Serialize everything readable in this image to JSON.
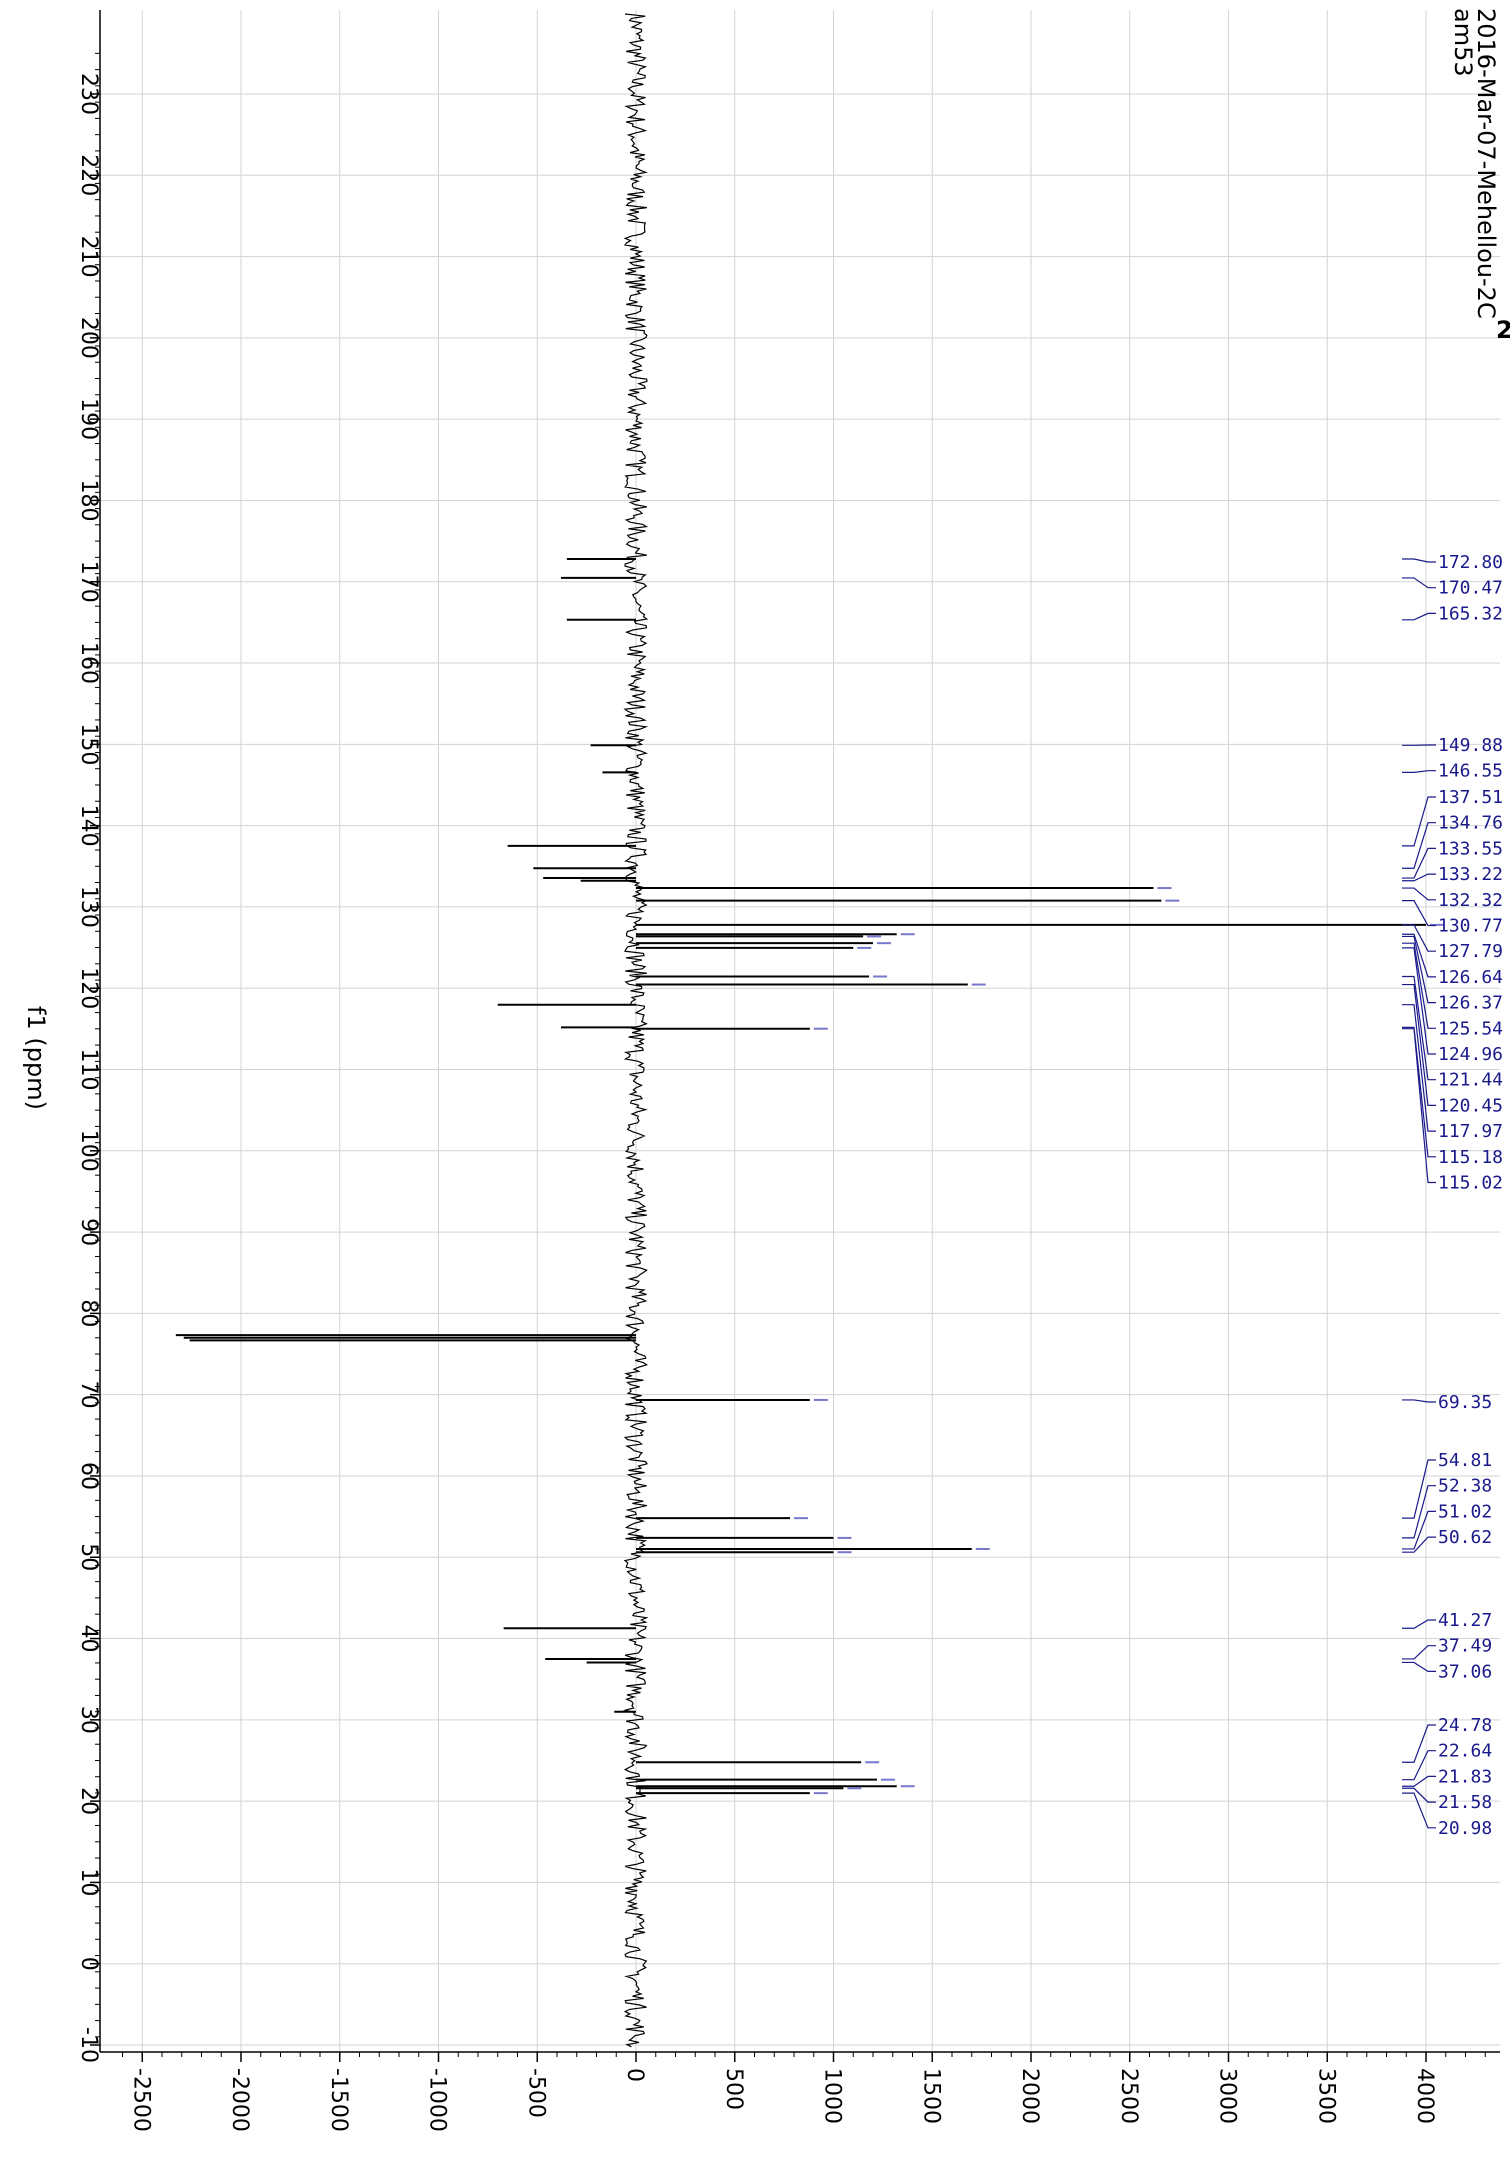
{
  "header": {
    "line1": "2016-Mar-07-Mehellou-2C",
    "line2": "am53",
    "edge_mark": "2"
  },
  "colors": {
    "spectrum": "#000000",
    "peak_label": "#1a1a8c",
    "peak_cap": "#7777cc",
    "grid": "#d3d3d3"
  },
  "chart_data": {
    "type": "line",
    "orientation": "rotated",
    "title": "",
    "xlabel": "f1 (ppm)",
    "ylabel": "",
    "xlim": [
      239,
      -11
    ],
    "ylim": [
      -2700,
      4400
    ],
    "x_ticks": [
      230,
      220,
      210,
      200,
      190,
      180,
      170,
      160,
      150,
      140,
      130,
      120,
      110,
      100,
      90,
      80,
      70,
      60,
      50,
      40,
      30,
      20,
      10,
      0,
      -10
    ],
    "y_ticks": [
      -2500,
      -2000,
      -1500,
      -1000,
      -500,
      0,
      500,
      1000,
      1500,
      2000,
      2500,
      3000,
      3500,
      4000
    ],
    "grid": true,
    "peaks": [
      {
        "ppm": 172.8,
        "intensity": -350
      },
      {
        "ppm": 170.47,
        "intensity": -380
      },
      {
        "ppm": 165.32,
        "intensity": -350
      },
      {
        "ppm": 149.88,
        "intensity": -230
      },
      {
        "ppm": 146.55,
        "intensity": -170
      },
      {
        "ppm": 137.51,
        "intensity": -650
      },
      {
        "ppm": 134.76,
        "intensity": -520
      },
      {
        "ppm": 133.55,
        "intensity": -470
      },
      {
        "ppm": 133.22,
        "intensity": -280
      },
      {
        "ppm": 132.32,
        "intensity": 2620
      },
      {
        "ppm": 130.77,
        "intensity": 2660
      },
      {
        "ppm": 127.79,
        "intensity": 4000
      },
      {
        "ppm": 126.64,
        "intensity": 1320
      },
      {
        "ppm": 126.37,
        "intensity": 1150
      },
      {
        "ppm": 125.54,
        "intensity": 1200
      },
      {
        "ppm": 124.96,
        "intensity": 1100
      },
      {
        "ppm": 121.44,
        "intensity": 1180
      },
      {
        "ppm": 120.45,
        "intensity": 1680
      },
      {
        "ppm": 117.97,
        "intensity": -700
      },
      {
        "ppm": 115.18,
        "intensity": -380
      },
      {
        "ppm": 115.02,
        "intensity": 880
      },
      {
        "ppm": 77.32,
        "intensity": -2330
      },
      {
        "ppm": 77.0,
        "intensity": -2290
      },
      {
        "ppm": 76.68,
        "intensity": -2260
      },
      {
        "ppm": 69.35,
        "intensity": 880
      },
      {
        "ppm": 54.81,
        "intensity": 780
      },
      {
        "ppm": 52.38,
        "intensity": 1000
      },
      {
        "ppm": 51.02,
        "intensity": 1700
      },
      {
        "ppm": 50.62,
        "intensity": 1000
      },
      {
        "ppm": 41.27,
        "intensity": -670
      },
      {
        "ppm": 37.49,
        "intensity": -460
      },
      {
        "ppm": 37.06,
        "intensity": -250
      },
      {
        "ppm": 31.0,
        "intensity": -110
      },
      {
        "ppm": 24.78,
        "intensity": 1140
      },
      {
        "ppm": 22.64,
        "intensity": 1220
      },
      {
        "ppm": 21.83,
        "intensity": 1320
      },
      {
        "ppm": 21.58,
        "intensity": 1050
      },
      {
        "ppm": 20.98,
        "intensity": 880
      }
    ],
    "peak_labels": [
      "172.80",
      "170.47",
      "165.32",
      "149.88",
      "146.55",
      "137.51",
      "134.76",
      "133.55",
      "133.22",
      "132.32",
      "130.77",
      "127.79",
      "126.64",
      "126.37",
      "125.54",
      "124.96",
      "121.44",
      "120.45",
      "117.97",
      "115.18",
      "115.02",
      "69.35",
      "54.81",
      "52.38",
      "51.02",
      "50.62",
      "41.27",
      "37.49",
      "37.06",
      "24.78",
      "22.64",
      "21.83",
      "21.58",
      "20.98"
    ]
  }
}
